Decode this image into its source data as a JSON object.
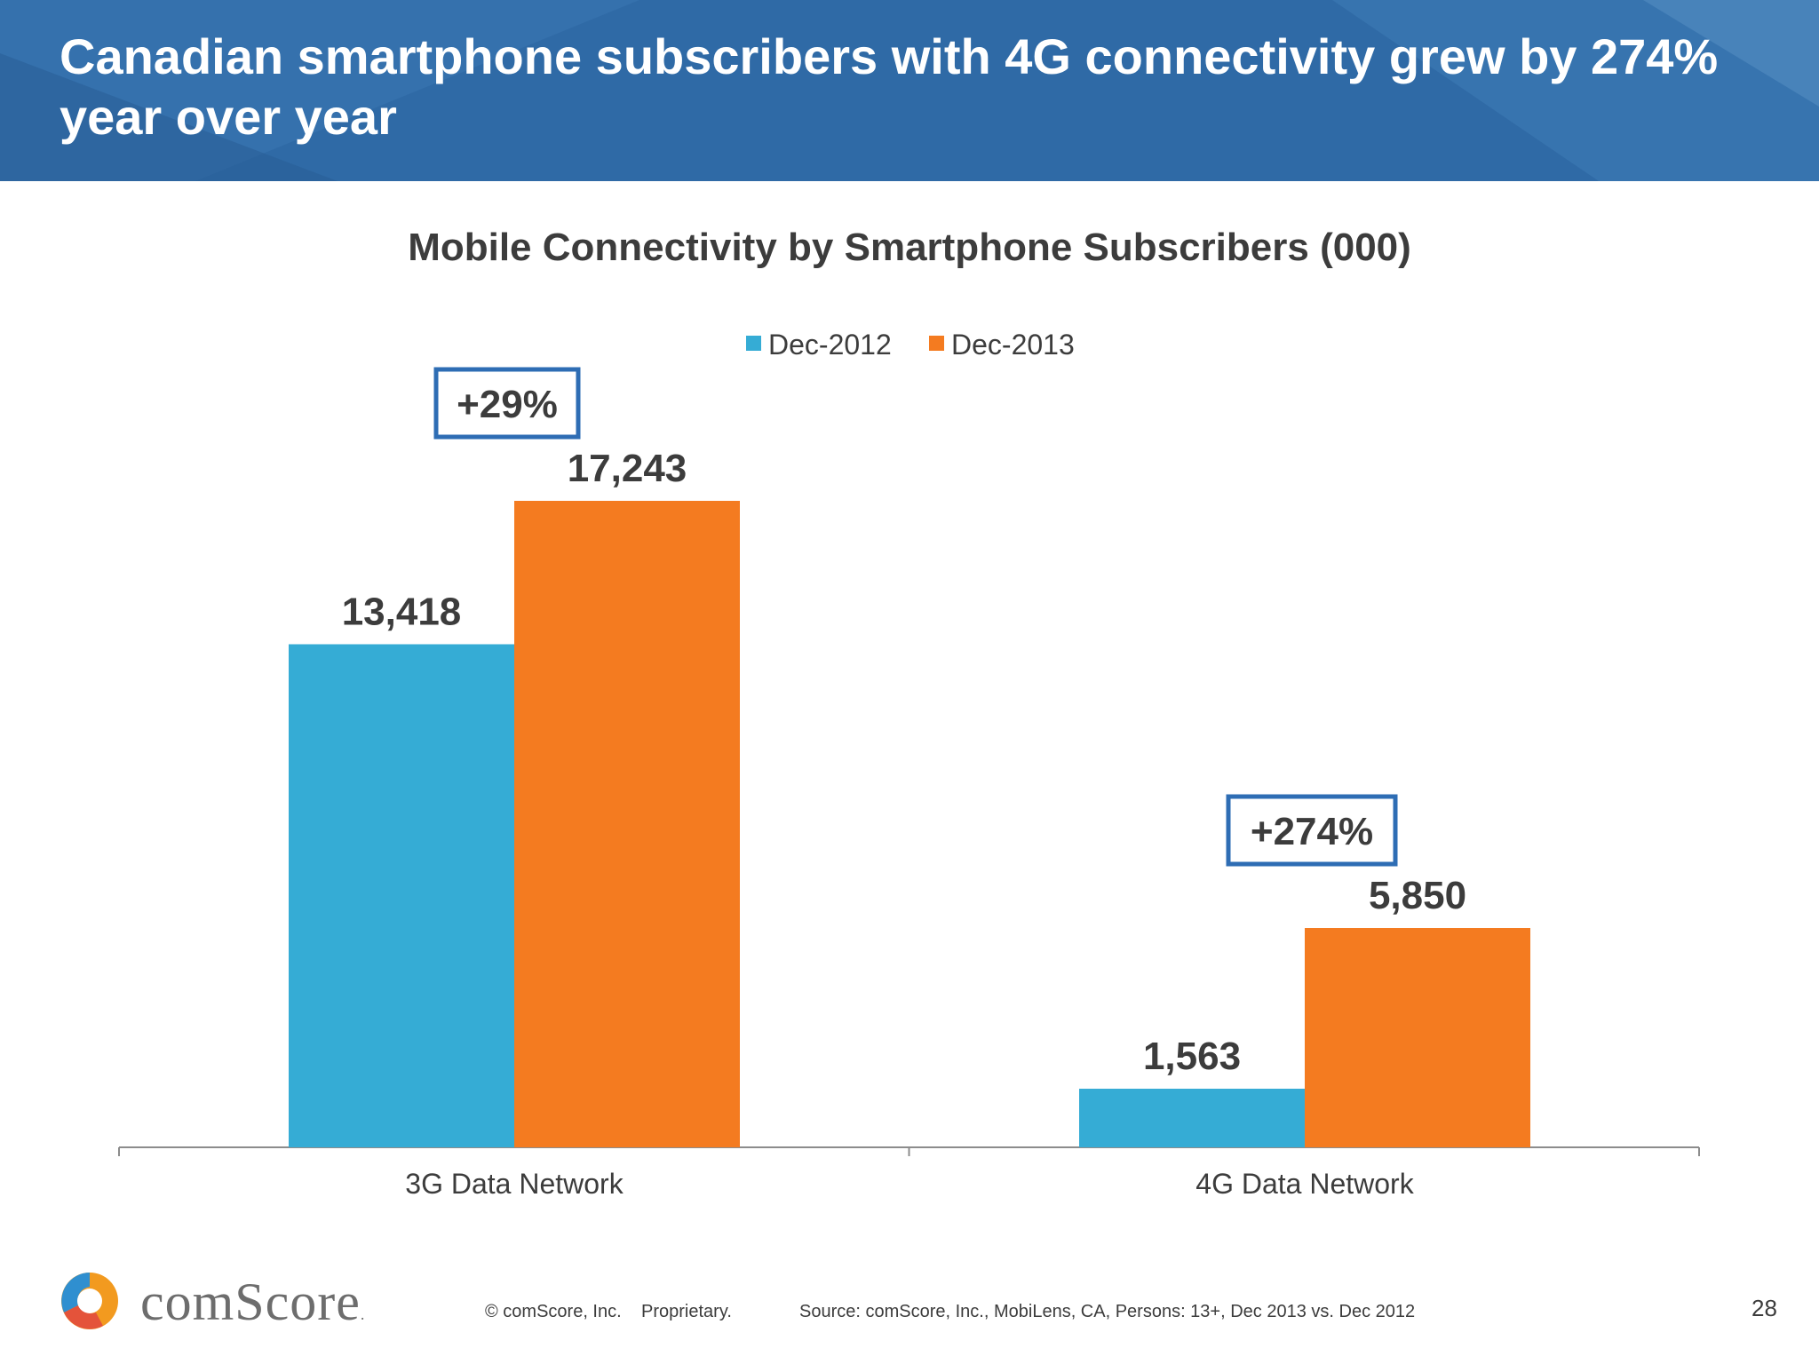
{
  "slide": {
    "title": "Canadian smartphone subscribers with 4G connectivity grew by 274% year over year"
  },
  "colors": {
    "header": "#2f6aa6",
    "dec2012": "#35acd5",
    "dec2013": "#f47b20",
    "growth_box": "#2e6db4",
    "axis": "#8c8c8c"
  },
  "chart_data": {
    "type": "bar",
    "title": "Mobile Connectivity by Smartphone Subscribers (000)",
    "categories": [
      "3G Data Network",
      "4G Data Network"
    ],
    "series": [
      {
        "name": "Dec-2012",
        "values": [
          13418,
          1563
        ],
        "labels": [
          "13,418",
          "1,563"
        ]
      },
      {
        "name": "Dec-2013",
        "values": [
          17243,
          5850
        ],
        "labels": [
          "17,243",
          "5,850"
        ]
      }
    ],
    "annotations": [
      "+29%",
      "+274%"
    ],
    "ylim": [
      0,
      18000
    ],
    "legend_position": "top-center",
    "grid": false
  },
  "footer": {
    "logo_text": "comScore",
    "copyright": "© comScore, Inc.",
    "proprietary": "Proprietary.",
    "source": "Source: comScore, Inc., MobiLens, CA, Persons: 13+, Dec 2013 vs. Dec 2012",
    "page_number": "28"
  }
}
